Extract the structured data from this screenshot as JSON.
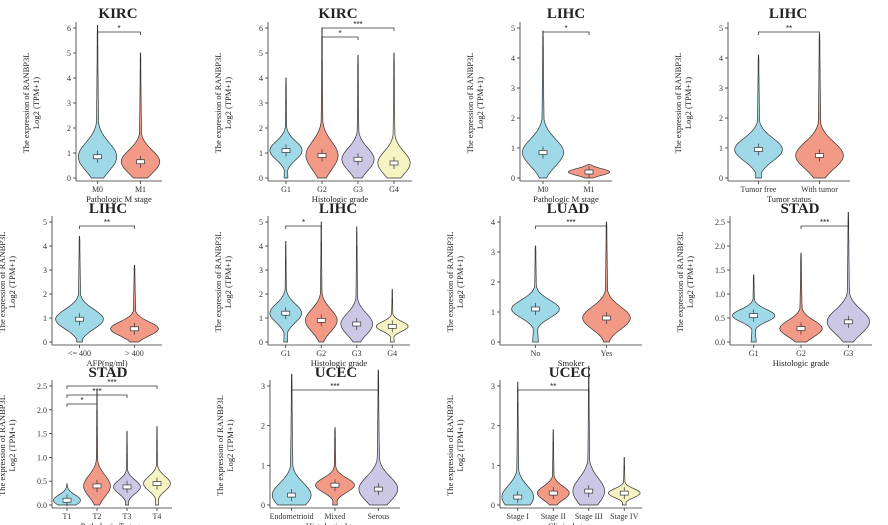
{
  "colors": [
    "#9fd8e6",
    "#f29a86",
    "#cdc7e6",
    "#f7f4c3"
  ],
  "ylabel_line1": "The expression  of RANBP3L",
  "chart_data": [
    {
      "type": "violin",
      "title": "KIRC",
      "ylabel": "Log2 (TPM+1)",
      "xlabel": "Pathologic M stage",
      "categories": [
        "M0",
        "M1"
      ],
      "medians": [
        0.85,
        0.65
      ],
      "maxes": [
        6.1,
        5.0
      ],
      "ylim": [
        0,
        6
      ],
      "yticks": [
        "0",
        "1",
        "2",
        "3",
        "4",
        "5",
        "6"
      ],
      "brackets": [
        {
          "from": 0,
          "to": 1,
          "label": "*"
        }
      ]
    },
    {
      "type": "violin",
      "title": "KIRC",
      "ylabel": "Log2 (TPM+1)",
      "xlabel": "Histologic grade",
      "categories": [
        "G1",
        "G2",
        "G3",
        "G4"
      ],
      "medians": [
        1.1,
        0.9,
        0.75,
        0.6
      ],
      "maxes": [
        4.0,
        6.0,
        4.9,
        5.0
      ],
      "ylim": [
        0,
        6
      ],
      "yticks": [
        "0",
        "1",
        "2",
        "3",
        "4",
        "5",
        "6"
      ],
      "brackets": [
        {
          "from": 1,
          "to": 2,
          "label": "*"
        },
        {
          "from": 1,
          "to": 3,
          "label": "***"
        }
      ]
    },
    {
      "type": "violin",
      "title": "LIHC",
      "ylabel": "Log2 (TPM+1)",
      "xlabel": "Pathologic M stage",
      "categories": [
        "M0",
        "M1"
      ],
      "medians": [
        0.85,
        0.2
      ],
      "maxes": [
        4.9,
        0.45
      ],
      "ylim": [
        0,
        5
      ],
      "yticks": [
        "0",
        "1",
        "2",
        "3",
        "4",
        "5"
      ],
      "brackets": [
        {
          "from": 0,
          "to": 1,
          "label": "*"
        }
      ]
    },
    {
      "type": "violin",
      "title": "LIHC",
      "ylabel": "Log2 (TPM+1)",
      "xlabel": "Tumor status",
      "categories": [
        "Tumor free",
        "With tumor"
      ],
      "medians": [
        0.95,
        0.75
      ],
      "maxes": [
        4.1,
        4.8
      ],
      "ylim": [
        0,
        5
      ],
      "yticks": [
        "0",
        "1",
        "2",
        "3",
        "4",
        "5"
      ],
      "brackets": [
        {
          "from": 0,
          "to": 1,
          "label": "**"
        }
      ]
    },
    {
      "type": "violin",
      "title": "LIHC",
      "ylabel": "Log2 (TPM+1)",
      "xlabel": "AFP(ng/ml)",
      "categories": [
        "<= 400",
        "> 400"
      ],
      "medians": [
        0.95,
        0.55
      ],
      "maxes": [
        4.4,
        3.2
      ],
      "ylim": [
        0,
        5
      ],
      "yticks": [
        "0",
        "1",
        "2",
        "3",
        "4",
        "5"
      ],
      "brackets": [
        {
          "from": 0,
          "to": 1,
          "label": "**"
        }
      ]
    },
    {
      "type": "violin",
      "title": "LIHC",
      "ylabel": "Log2 (TPM+1)",
      "xlabel": "Histologic grade",
      "categories": [
        "G1",
        "G2",
        "G3",
        "G4"
      ],
      "medians": [
        1.2,
        0.9,
        0.75,
        0.65
      ],
      "maxes": [
        4.2,
        5.0,
        4.8,
        2.2
      ],
      "ylim": [
        0,
        5
      ],
      "yticks": [
        "0",
        "1",
        "2",
        "3",
        "4",
        "5"
      ],
      "brackets": [
        {
          "from": 0,
          "to": 1,
          "label": "*"
        }
      ]
    },
    {
      "type": "violin",
      "title": "LUAD",
      "ylabel": "Log2 (TPM+1)",
      "xlabel": "Smoker",
      "categories": [
        "No",
        "Yes"
      ],
      "medians": [
        1.1,
        0.8
      ],
      "maxes": [
        3.2,
        4.0
      ],
      "ylim": [
        0,
        4
      ],
      "yticks": [
        "0",
        "1",
        "2",
        "3",
        "4"
      ],
      "brackets": [
        {
          "from": 0,
          "to": 1,
          "label": "***"
        }
      ]
    },
    {
      "type": "violin",
      "title": "STAD",
      "ylabel": "Log2 (TPM+1)",
      "xlabel": "Histologic grade",
      "categories": [
        "G1",
        "G2",
        "G3"
      ],
      "medians": [
        0.55,
        0.28,
        0.42
      ],
      "maxes": [
        1.4,
        1.85,
        2.7
      ],
      "ylim": [
        0,
        2.5
      ],
      "yticks": [
        "0.0",
        "0.5",
        "1.0",
        "1.5",
        "2.0",
        "2.5"
      ],
      "brackets": [
        {
          "from": 1,
          "to": 2,
          "label": "***"
        }
      ]
    },
    {
      "type": "violin",
      "title": "STAD",
      "ylabel": "Log2 (TPM+1)",
      "xlabel": "Pathologic T stage",
      "categories": [
        "T1",
        "T2",
        "T3",
        "T4"
      ],
      "medians": [
        0.1,
        0.4,
        0.38,
        0.45
      ],
      "maxes": [
        0.45,
        2.4,
        1.55,
        1.65
      ],
      "ylim": [
        0,
        2.5
      ],
      "yticks": [
        "0.0",
        "0.5",
        "1.0",
        "1.5",
        "2.0",
        "2.5"
      ],
      "brackets": [
        {
          "from": 0,
          "to": 1,
          "label": "*"
        },
        {
          "from": 0,
          "to": 2,
          "label": "***"
        },
        {
          "from": 0,
          "to": 3,
          "label": "***"
        }
      ]
    },
    {
      "type": "violin",
      "title": "UCEC",
      "ylabel": "Log2 (TPM+1)",
      "xlabel": "Histological type",
      "categories": [
        "Endometrioid",
        "Mixed",
        "Serous"
      ],
      "medians": [
        0.25,
        0.5,
        0.4
      ],
      "maxes": [
        3.3,
        1.95,
        3.4
      ],
      "ylim": [
        0,
        3
      ],
      "yticks": [
        "0",
        "1",
        "2",
        "3"
      ],
      "brackets": [
        {
          "from": 0,
          "to": 2,
          "label": "***"
        }
      ]
    },
    {
      "type": "violin",
      "title": "UCEC",
      "ylabel": "Log2 (TPM+1)",
      "xlabel": "Clinical stage",
      "categories": [
        "Stage I",
        "Stage II",
        "Stage III",
        "Stage IV"
      ],
      "medians": [
        0.2,
        0.3,
        0.35,
        0.3
      ],
      "maxes": [
        3.1,
        1.9,
        3.5,
        1.2
      ],
      "ylim": [
        0,
        3
      ],
      "yticks": [
        "0",
        "1",
        "2",
        "3"
      ],
      "brackets": [
        {
          "from": 0,
          "to": 2,
          "label": "**"
        }
      ]
    }
  ]
}
